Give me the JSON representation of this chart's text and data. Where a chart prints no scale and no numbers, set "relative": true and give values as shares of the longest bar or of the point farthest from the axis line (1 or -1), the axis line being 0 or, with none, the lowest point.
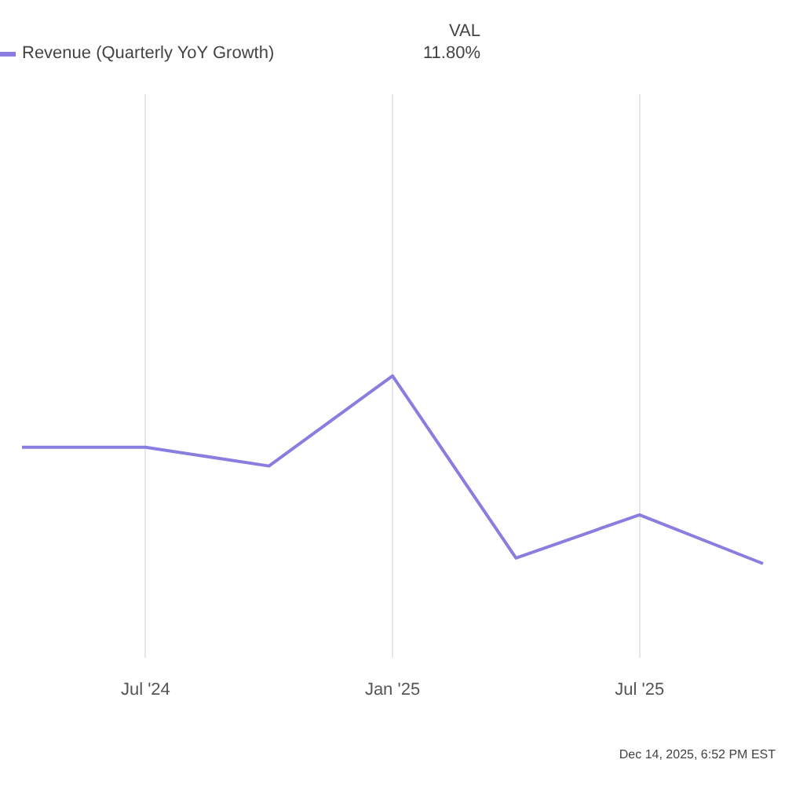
{
  "chart_data": {
    "type": "line",
    "relative": true,
    "categories": [
      null,
      "Jul '24",
      null,
      "Jan '25",
      null,
      "Jul '25",
      null
    ],
    "series": [
      {
        "name": "Revenue (Quarterly YoY Growth)",
        "color": "#8a7de0",
        "values": [
          0.62,
          0.62,
          0.52,
          1,
          0.03,
          0.26,
          0
        ]
      }
    ],
    "grid": "x",
    "legend": "top left",
    "marker": "none",
    "line_style": "solid",
    "annotations": [
      "VAL",
      "11.80%",
      "Dec 14, 2025, 6:52 PM EST"
    ]
  }
}
